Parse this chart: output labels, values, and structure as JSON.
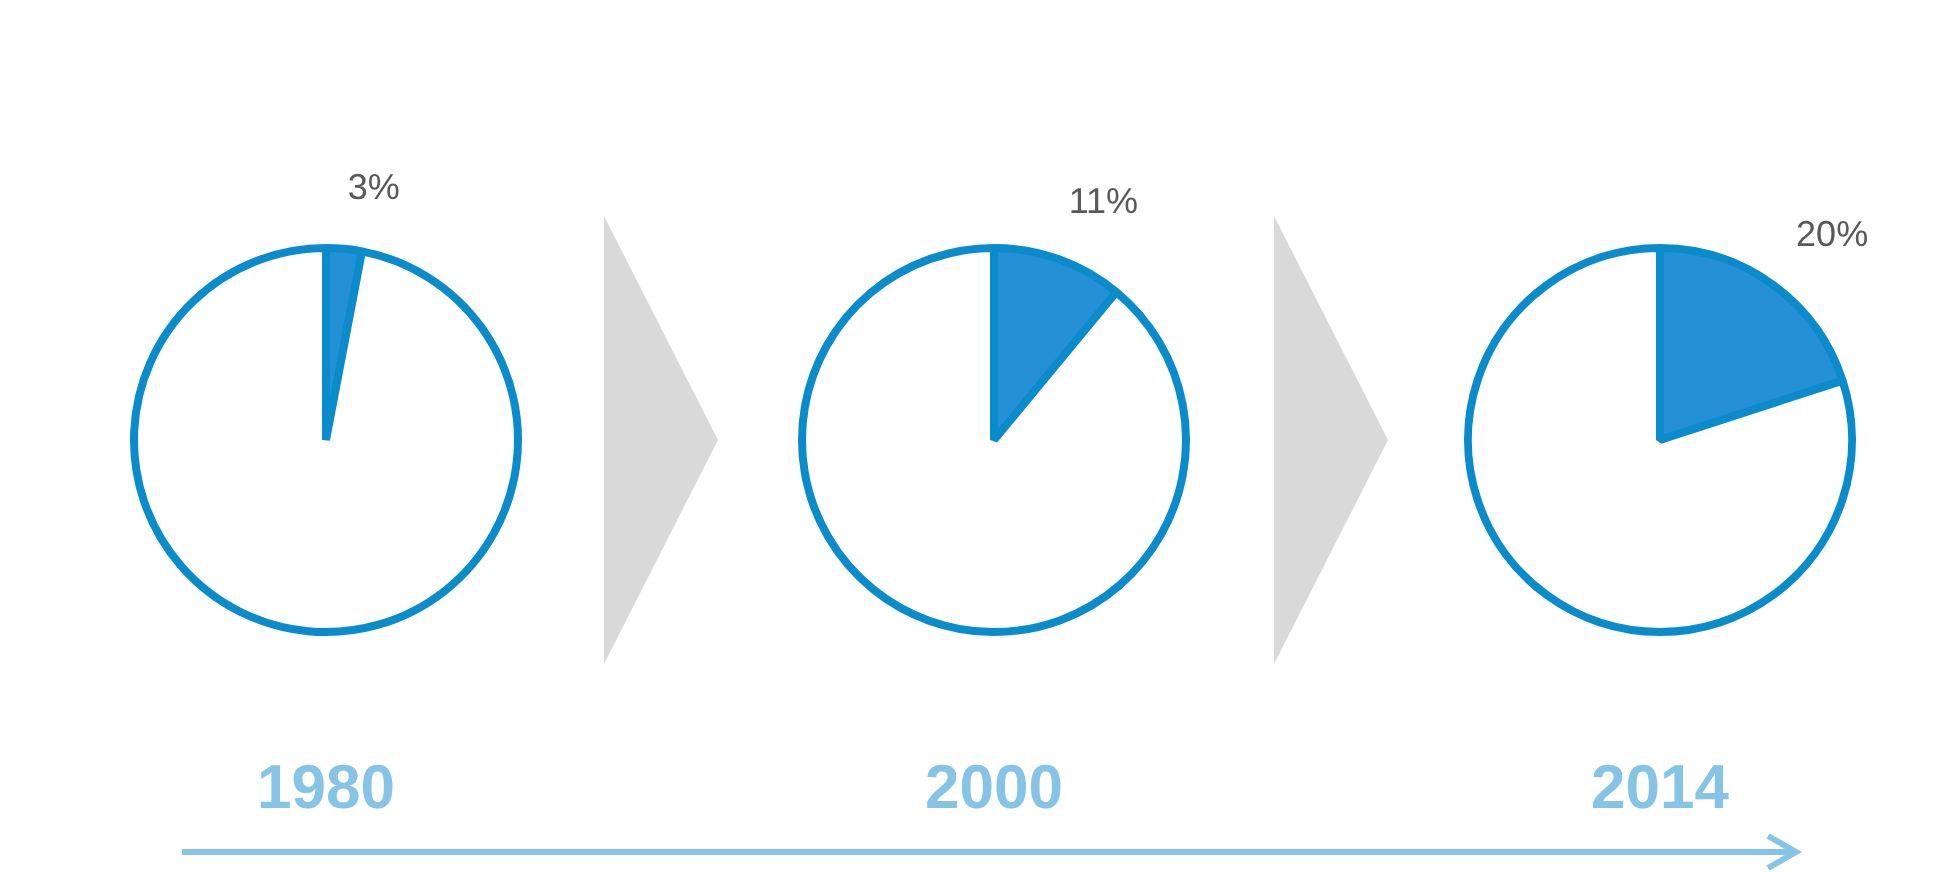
{
  "chart_data": [
    {
      "type": "pie",
      "title": "1980",
      "categories": [
        null,
        null
      ],
      "values": [
        3,
        97
      ],
      "colors": [
        "#2690d6",
        "#ffffff"
      ],
      "value_labels": [
        "3%",
        null
      ],
      "legend": false
    },
    {
      "type": "pie",
      "title": "2000",
      "categories": [
        null,
        null
      ],
      "values": [
        11,
        89
      ],
      "colors": [
        "#2690d6",
        "#ffffff"
      ],
      "value_labels": [
        "11%",
        null
      ],
      "legend": false
    },
    {
      "type": "pie",
      "title": "2014",
      "categories": [
        null,
        null
      ],
      "values": [
        20,
        80
      ],
      "colors": [
        "#2690d6",
        "#ffffff"
      ],
      "value_labels": [
        "20%",
        null
      ],
      "legend": false
    }
  ]
}
